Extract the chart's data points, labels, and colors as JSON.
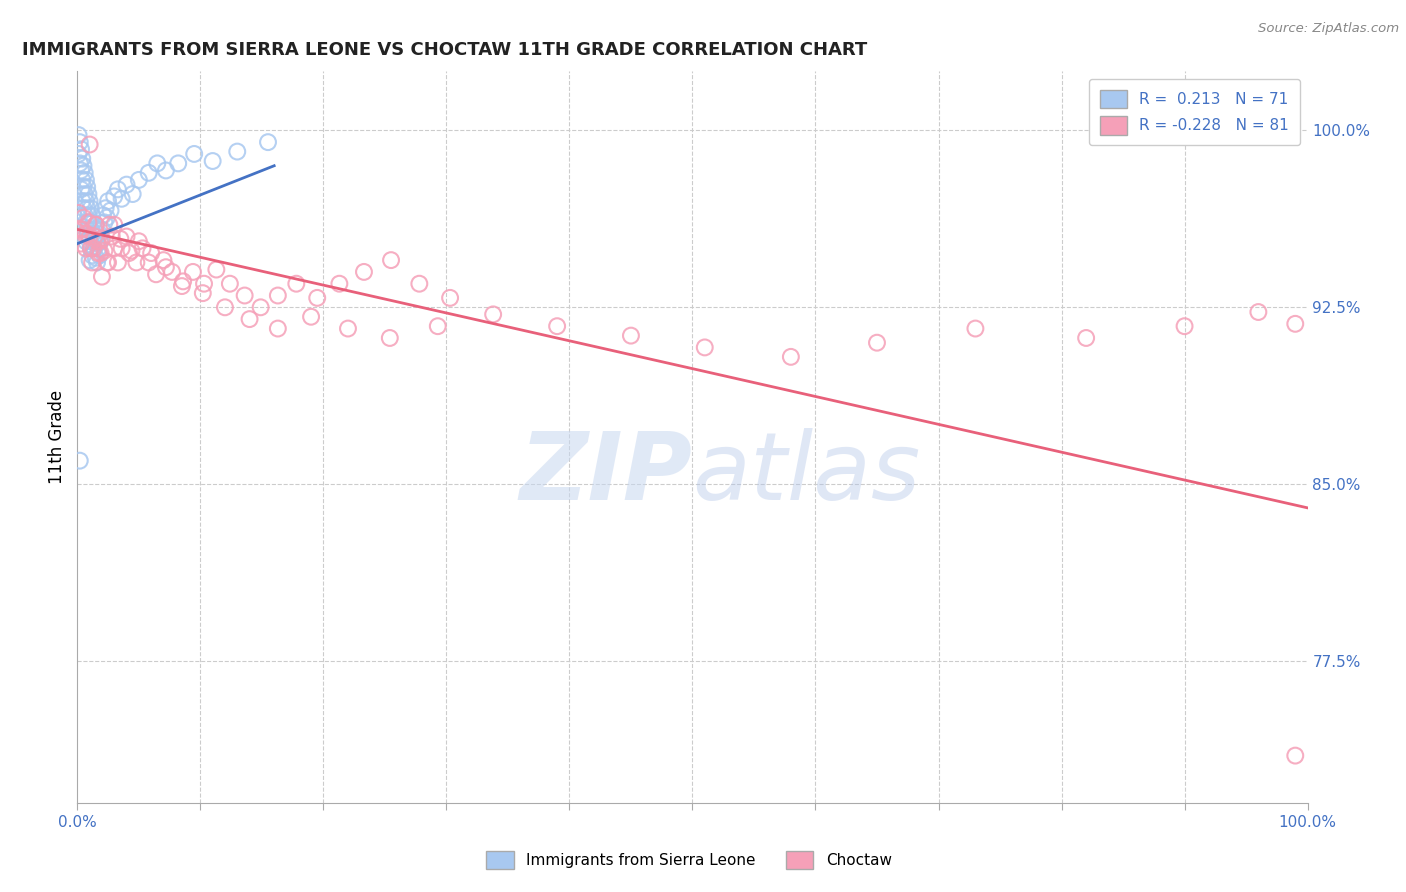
{
  "title": "IMMIGRANTS FROM SIERRA LEONE VS CHOCTAW 11TH GRADE CORRELATION CHART",
  "source": "Source: ZipAtlas.com",
  "ylabel": "11th Grade",
  "legend_r1": "R =  0.213",
  "legend_n1": "N = 71",
  "legend_r2": "R = -0.228",
  "legend_n2": "N = 81",
  "color_blue": "#A8C8F0",
  "color_pink": "#F5A0B8",
  "trendline_blue": "#4472C4",
  "trendline_pink": "#E8607A",
  "watermark_zip": "ZIP",
  "watermark_atlas": "atlas",
  "xlim": [
    0.0,
    1.0
  ],
  "ylim": [
    0.715,
    1.025
  ],
  "ytick_positions": [
    0.775,
    0.85,
    0.925,
    1.0
  ],
  "ytick_labels": [
    "77.5%",
    "85.0%",
    "92.5%",
    "100.0%"
  ],
  "blue_x": [
    0.001,
    0.001,
    0.002,
    0.002,
    0.003,
    0.003,
    0.003,
    0.004,
    0.004,
    0.004,
    0.005,
    0.005,
    0.005,
    0.005,
    0.006,
    0.006,
    0.006,
    0.007,
    0.007,
    0.007,
    0.007,
    0.008,
    0.008,
    0.008,
    0.009,
    0.009,
    0.009,
    0.01,
    0.01,
    0.01,
    0.01,
    0.011,
    0.011,
    0.011,
    0.012,
    0.012,
    0.012,
    0.013,
    0.013,
    0.014,
    0.014,
    0.015,
    0.015,
    0.016,
    0.016,
    0.017,
    0.018,
    0.018,
    0.019,
    0.02,
    0.021,
    0.022,
    0.023,
    0.024,
    0.025,
    0.027,
    0.03,
    0.033,
    0.036,
    0.04,
    0.045,
    0.05,
    0.058,
    0.065,
    0.072,
    0.082,
    0.095,
    0.11,
    0.13,
    0.155,
    0.002
  ],
  "blue_y": [
    0.998,
    0.99,
    0.995,
    0.986,
    0.992,
    0.983,
    0.975,
    0.988,
    0.979,
    0.97,
    0.985,
    0.976,
    0.967,
    0.959,
    0.982,
    0.973,
    0.964,
    0.979,
    0.97,
    0.961,
    0.953,
    0.976,
    0.967,
    0.958,
    0.973,
    0.964,
    0.956,
    0.97,
    0.961,
    0.953,
    0.945,
    0.967,
    0.958,
    0.95,
    0.964,
    0.956,
    0.947,
    0.961,
    0.953,
    0.958,
    0.95,
    0.955,
    0.946,
    0.952,
    0.944,
    0.95,
    0.956,
    0.947,
    0.953,
    0.958,
    0.964,
    0.961,
    0.967,
    0.963,
    0.97,
    0.966,
    0.972,
    0.975,
    0.971,
    0.977,
    0.973,
    0.979,
    0.982,
    0.986,
    0.983,
    0.986,
    0.99,
    0.987,
    0.991,
    0.995,
    0.86
  ],
  "pink_x": [
    0.001,
    0.002,
    0.003,
    0.004,
    0.005,
    0.006,
    0.007,
    0.008,
    0.009,
    0.01,
    0.011,
    0.012,
    0.013,
    0.014,
    0.015,
    0.016,
    0.017,
    0.018,
    0.019,
    0.02,
    0.022,
    0.024,
    0.026,
    0.028,
    0.03,
    0.033,
    0.036,
    0.04,
    0.044,
    0.048,
    0.053,
    0.058,
    0.064,
    0.07,
    0.077,
    0.085,
    0.094,
    0.103,
    0.113,
    0.124,
    0.136,
    0.149,
    0.163,
    0.178,
    0.195,
    0.213,
    0.233,
    0.255,
    0.278,
    0.303,
    0.01,
    0.015,
    0.02,
    0.025,
    0.03,
    0.035,
    0.042,
    0.05,
    0.06,
    0.072,
    0.086,
    0.102,
    0.12,
    0.14,
    0.163,
    0.19,
    0.22,
    0.254,
    0.293,
    0.338,
    0.39,
    0.45,
    0.51,
    0.58,
    0.65,
    0.73,
    0.82,
    0.9,
    0.96,
    0.99,
    0.99
  ],
  "pink_y": [
    0.965,
    0.958,
    0.952,
    0.958,
    0.963,
    0.956,
    0.95,
    0.956,
    0.961,
    0.955,
    0.95,
    0.944,
    0.95,
    0.955,
    0.96,
    0.953,
    0.948,
    0.953,
    0.948,
    0.954,
    0.949,
    0.944,
    0.96,
    0.955,
    0.95,
    0.944,
    0.95,
    0.955,
    0.949,
    0.944,
    0.95,
    0.944,
    0.939,
    0.945,
    0.94,
    0.934,
    0.94,
    0.935,
    0.941,
    0.935,
    0.93,
    0.925,
    0.93,
    0.935,
    0.929,
    0.935,
    0.94,
    0.945,
    0.935,
    0.929,
    0.994,
    0.96,
    0.938,
    0.944,
    0.96,
    0.954,
    0.948,
    0.953,
    0.948,
    0.942,
    0.936,
    0.931,
    0.925,
    0.92,
    0.916,
    0.921,
    0.916,
    0.912,
    0.917,
    0.922,
    0.917,
    0.913,
    0.908,
    0.904,
    0.91,
    0.916,
    0.912,
    0.917,
    0.923,
    0.918,
    0.735
  ],
  "blue_trend_x": [
    0.0,
    0.16
  ],
  "blue_trend_y": [
    0.952,
    0.985
  ],
  "pink_trend_x": [
    0.0,
    1.0
  ],
  "pink_trend_y": [
    0.958,
    0.84
  ]
}
